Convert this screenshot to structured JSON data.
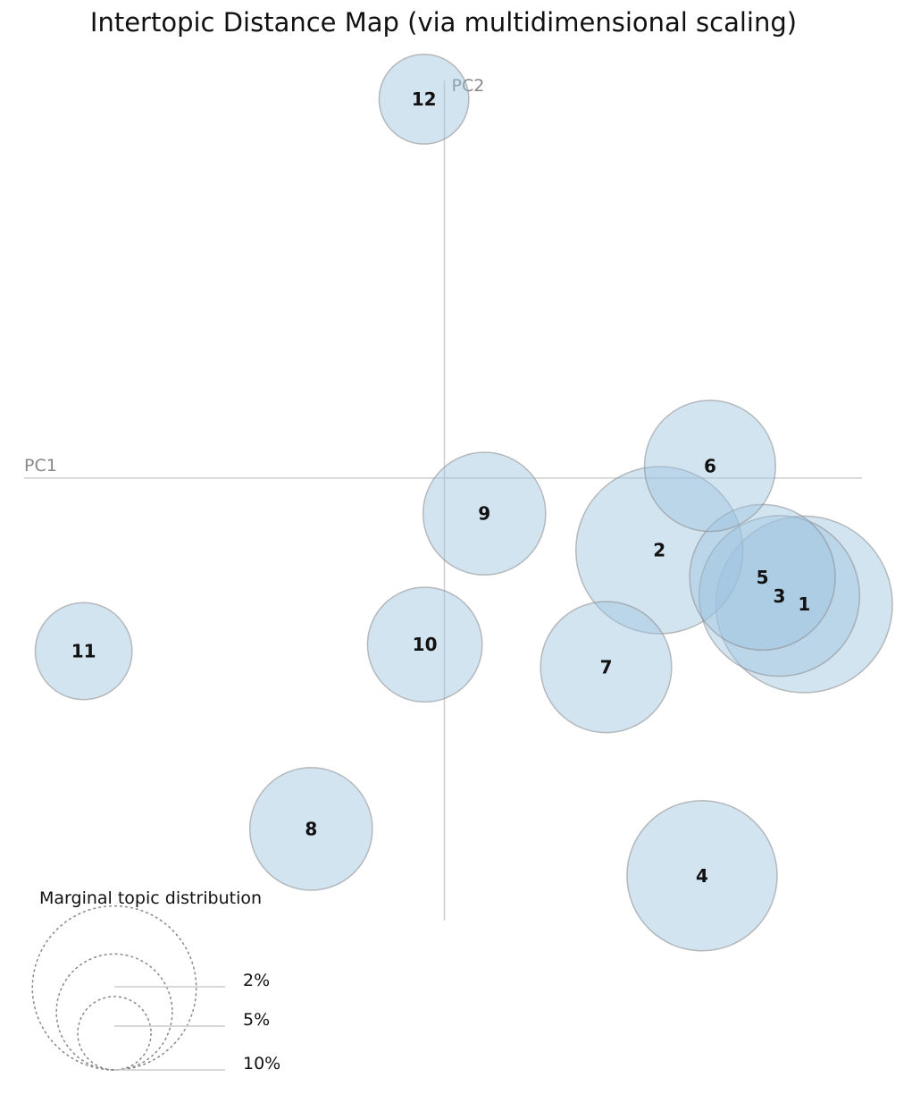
{
  "chart_data": {
    "type": "scatter",
    "title": "Intertopic Distance Map (via multidimensional scaling)",
    "xlabel": "PC1",
    "ylabel": "PC2",
    "xlim": [
      -0.473,
      0.47
    ],
    "ylim": [
      -0.473,
      0.425
    ],
    "grid": false,
    "topics": [
      {
        "label": "1",
        "x": 0.405,
        "y": -0.135,
        "size": 11.6
      },
      {
        "label": "2",
        "x": 0.242,
        "y": -0.077,
        "size": 10.4
      },
      {
        "label": "3",
        "x": 0.377,
        "y": -0.126,
        "size": 9.6
      },
      {
        "label": "4",
        "x": 0.29,
        "y": -0.425,
        "size": 8.4
      },
      {
        "label": "5",
        "x": 0.358,
        "y": -0.106,
        "size": 7.9
      },
      {
        "label": "6",
        "x": 0.299,
        "y": 0.013,
        "size": 6.4
      },
      {
        "label": "7",
        "x": 0.182,
        "y": -0.202,
        "size": 6.4
      },
      {
        "label": "8",
        "x": -0.15,
        "y": -0.375,
        "size": 5.6
      },
      {
        "label": "9",
        "x": 0.045,
        "y": -0.038,
        "size": 5.6
      },
      {
        "label": "10",
        "x": -0.022,
        "y": -0.178,
        "size": 4.9
      },
      {
        "label": "11",
        "x": -0.406,
        "y": -0.185,
        "size": 3.5
      },
      {
        "label": "12",
        "x": -0.023,
        "y": 0.405,
        "size": 3.0
      }
    ],
    "legend": {
      "title": "Marginal topic distribution",
      "entries": [
        {
          "label": "2%",
          "size": 2
        },
        {
          "label": "5%",
          "size": 5
        },
        {
          "label": "10%",
          "size": 10
        }
      ]
    }
  },
  "colors": {
    "bubble_fill": "#9ec3e0",
    "bubble_stroke": "#8a8a8a",
    "axis": "#cccccc",
    "axis_label": "#888888"
  }
}
